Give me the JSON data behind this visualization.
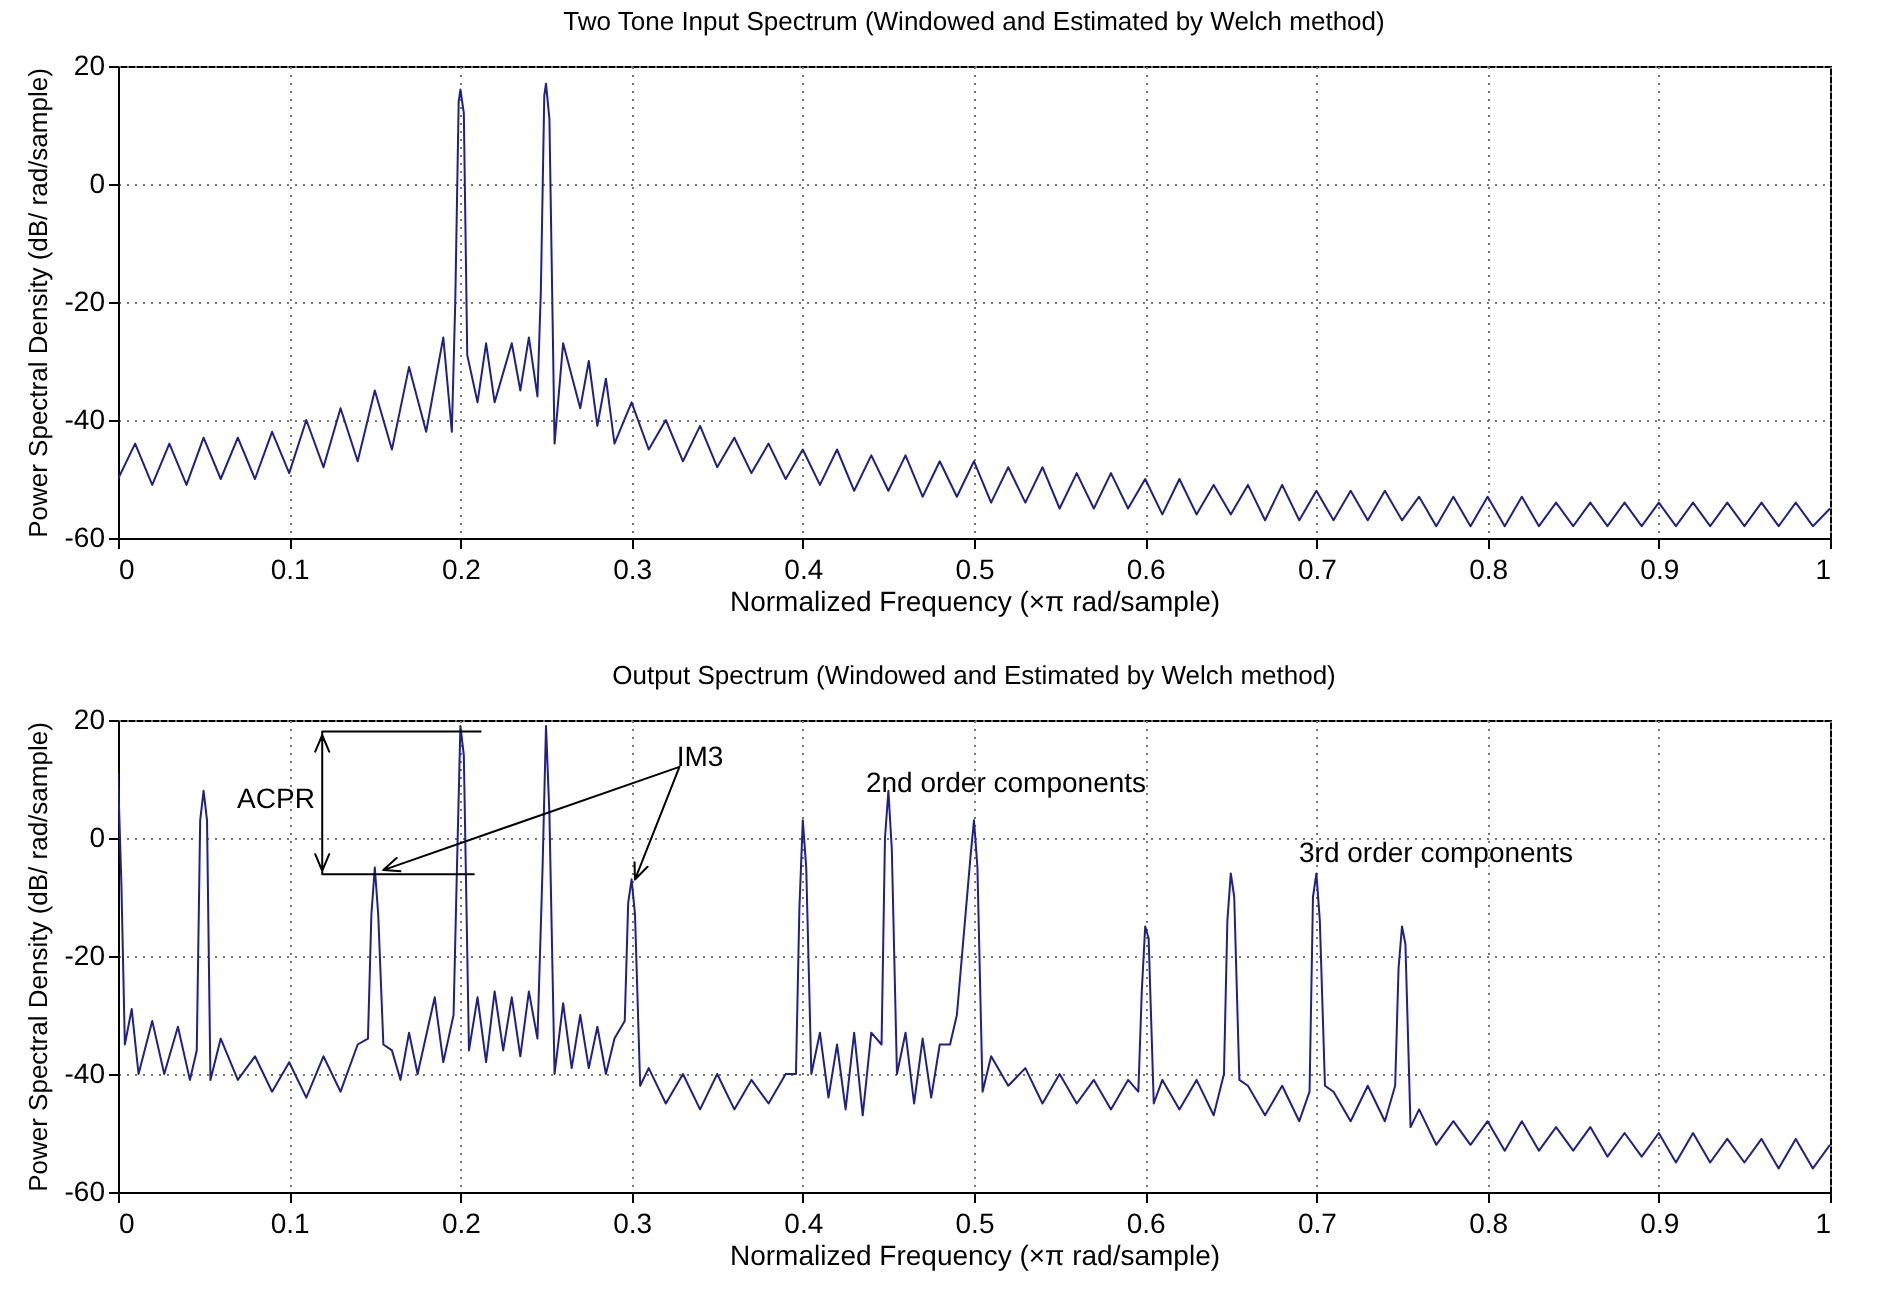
{
  "chart_data": [
    {
      "type": "line",
      "title": "Two Tone Input Spectrum (Windowed and Estimated by Welch method)",
      "xlabel": "Normalized Frequency  (×π rad/sample)",
      "ylabel": "Power Spectral Density (dB/ rad/sample)",
      "xlim": [
        0,
        1
      ],
      "ylim": [
        -60,
        20
      ],
      "xticks": [
        0,
        0.1,
        0.2,
        0.3,
        0.4,
        0.5,
        0.6,
        0.7,
        0.8,
        0.9,
        1
      ],
      "yticks": [
        -60,
        -40,
        -20,
        0,
        20
      ],
      "grid": true,
      "series": [
        {
          "color": "#1f1f8f",
          "x": [
            0,
            0.01,
            0.02,
            0.03,
            0.04,
            0.05,
            0.06,
            0.07,
            0.08,
            0.09,
            0.1,
            0.11,
            0.12,
            0.13,
            0.14,
            0.15,
            0.16,
            0.17,
            0.18,
            0.19,
            0.195,
            0.197,
            0.199,
            0.2,
            0.202,
            0.204,
            0.21,
            0.215,
            0.22,
            0.23,
            0.235,
            0.24,
            0.245,
            0.247,
            0.249,
            0.25,
            0.252,
            0.255,
            0.26,
            0.27,
            0.275,
            0.28,
            0.285,
            0.29,
            0.3,
            0.31,
            0.32,
            0.33,
            0.34,
            0.35,
            0.36,
            0.37,
            0.38,
            0.39,
            0.4,
            0.41,
            0.42,
            0.43,
            0.44,
            0.45,
            0.46,
            0.47,
            0.48,
            0.49,
            0.5,
            0.51,
            0.52,
            0.53,
            0.54,
            0.55,
            0.56,
            0.57,
            0.58,
            0.59,
            0.6,
            0.61,
            0.62,
            0.63,
            0.64,
            0.65,
            0.66,
            0.67,
            0.68,
            0.69,
            0.7,
            0.71,
            0.72,
            0.73,
            0.74,
            0.75,
            0.76,
            0.77,
            0.78,
            0.79,
            0.8,
            0.81,
            0.82,
            0.83,
            0.84,
            0.85,
            0.86,
            0.87,
            0.88,
            0.89,
            0.9,
            0.91,
            0.92,
            0.93,
            0.94,
            0.95,
            0.96,
            0.97,
            0.98,
            0.99,
            1
          ],
          "values": [
            -50,
            -44,
            -51,
            -44,
            -51,
            -43,
            -50,
            -43,
            -50,
            -42,
            -49,
            -40,
            -48,
            -38,
            -47,
            -35,
            -45,
            -31,
            -42,
            -26,
            -42,
            -20,
            14,
            16,
            12,
            -29,
            -37,
            -27,
            -37,
            -27,
            -35,
            -26,
            -36,
            -18,
            15,
            17,
            11,
            -44,
            -27,
            -38,
            -30,
            -41,
            -33,
            -44,
            -37,
            -45,
            -40,
            -47,
            -41,
            -48,
            -43,
            -49,
            -44,
            -50,
            -45,
            -51,
            -45,
            -52,
            -46,
            -52,
            -46,
            -53,
            -47,
            -53,
            -47,
            -54,
            -48,
            -54,
            -48,
            -55,
            -49,
            -55,
            -49,
            -55,
            -50,
            -56,
            -50,
            -56,
            -51,
            -56,
            -51,
            -57,
            -51,
            -57,
            -52,
            -57,
            -52,
            -57,
            -52,
            -57,
            -53,
            -58,
            -53,
            -58,
            -53,
            -58,
            -53,
            -58,
            -54,
            -58,
            -54,
            -58,
            -54,
            -58,
            -54,
            -58,
            -54,
            -58,
            -54,
            -58,
            -54,
            -58,
            -54,
            -58,
            -55
          ]
        }
      ]
    },
    {
      "type": "line",
      "title": "Output Spectrum (Windowed and Estimated by Welch method)",
      "xlabel": "Normalized Frequency  (×π rad/sample)",
      "ylabel": "Power Spectral Density (dB/ rad/sample)",
      "xlim": [
        0,
        1
      ],
      "ylim": [
        -60,
        20
      ],
      "xticks": [
        0,
        0.1,
        0.2,
        0.3,
        0.4,
        0.5,
        0.6,
        0.7,
        0.8,
        0.9,
        1
      ],
      "yticks": [
        -60,
        -40,
        -20,
        0,
        20
      ],
      "grid": true,
      "annotations": [
        "ACPR",
        "IM3",
        "2nd order components",
        "3rd order components"
      ],
      "series": [
        {
          "color": "#1f1f8f",
          "x": [
            0,
            0.002,
            0.004,
            0.008,
            0.012,
            0.02,
            0.027,
            0.035,
            0.042,
            0.046,
            0.048,
            0.05,
            0.052,
            0.054,
            0.06,
            0.07,
            0.08,
            0.09,
            0.1,
            0.11,
            0.12,
            0.13,
            0.14,
            0.146,
            0.148,
            0.15,
            0.152,
            0.155,
            0.16,
            0.165,
            0.17,
            0.175,
            0.185,
            0.19,
            0.196,
            0.198,
            0.2,
            0.202,
            0.205,
            0.21,
            0.215,
            0.22,
            0.225,
            0.23,
            0.235,
            0.24,
            0.245,
            0.248,
            0.25,
            0.252,
            0.255,
            0.26,
            0.265,
            0.27,
            0.275,
            0.28,
            0.285,
            0.29,
            0.296,
            0.298,
            0.3,
            0.302,
            0.305,
            0.31,
            0.32,
            0.33,
            0.34,
            0.35,
            0.36,
            0.37,
            0.38,
            0.39,
            0.396,
            0.398,
            0.4,
            0.402,
            0.405,
            0.41,
            0.415,
            0.42,
            0.425,
            0.43,
            0.435,
            0.44,
            0.446,
            0.448,
            0.45,
            0.452,
            0.455,
            0.46,
            0.465,
            0.47,
            0.475,
            0.48,
            0.486,
            0.49,
            0.498,
            0.5,
            0.502,
            0.505,
            0.51,
            0.52,
            0.53,
            0.54,
            0.55,
            0.56,
            0.57,
            0.58,
            0.59,
            0.596,
            0.598,
            0.6,
            0.602,
            0.605,
            0.61,
            0.62,
            0.63,
            0.64,
            0.646,
            0.648,
            0.65,
            0.652,
            0.655,
            0.66,
            0.67,
            0.68,
            0.69,
            0.696,
            0.698,
            0.7,
            0.702,
            0.705,
            0.71,
            0.72,
            0.73,
            0.74,
            0.746,
            0.748,
            0.75,
            0.752,
            0.755,
            0.76,
            0.77,
            0.78,
            0.79,
            0.8,
            0.81,
            0.82,
            0.83,
            0.84,
            0.85,
            0.86,
            0.87,
            0.88,
            0.89,
            0.9,
            0.91,
            0.92,
            0.93,
            0.94,
            0.95,
            0.96,
            0.97,
            0.98,
            0.99,
            1
          ],
          "values": [
            11,
            -8,
            -35,
            -29,
            -40,
            -31,
            -40,
            -32,
            -41,
            -36,
            3,
            8,
            3,
            -41,
            -34,
            -41,
            -37,
            -43,
            -38,
            -44,
            -37,
            -43,
            -35,
            -34,
            -13,
            -5,
            -13,
            -35,
            -36,
            -41,
            -33,
            -40,
            -27,
            -38,
            -30,
            -5,
            19,
            14,
            -36,
            -27,
            -38,
            -26,
            -36,
            -27,
            -37,
            -26,
            -34,
            -5,
            19,
            4,
            -40,
            -28,
            -39,
            -30,
            -39,
            -32,
            -40,
            -34,
            -31,
            -11,
            -7,
            -13,
            -42,
            -39,
            -45,
            -40,
            -46,
            -40,
            -46,
            -41,
            -45,
            -40,
            -40,
            -12,
            3,
            -5,
            -40,
            -33,
            -44,
            -35,
            -46,
            -33,
            -47,
            -33,
            -35,
            0,
            8,
            -2,
            -40,
            -33,
            -45,
            -34,
            -44,
            -35,
            -35,
            -30,
            -3,
            3,
            -5,
            -43,
            -37,
            -42,
            -39,
            -45,
            -40,
            -45,
            -41,
            -46,
            -41,
            -43,
            -26,
            -15,
            -17,
            -45,
            -41,
            -46,
            -41,
            -47,
            -40,
            -14,
            -6,
            -10,
            -41,
            -42,
            -47,
            -42,
            -48,
            -43,
            -10,
            -6,
            -14,
            -42,
            -43,
            -48,
            -42,
            -48,
            -42,
            -22,
            -15,
            -18,
            -49,
            -46,
            -52,
            -48,
            -52,
            -48,
            -53,
            -48,
            -53,
            -49,
            -53,
            -49,
            -54,
            -50,
            -54,
            -50,
            -55,
            -50,
            -55,
            -51,
            -55,
            -51,
            -56,
            -51,
            -56,
            -52
          ]
        }
      ]
    }
  ]
}
